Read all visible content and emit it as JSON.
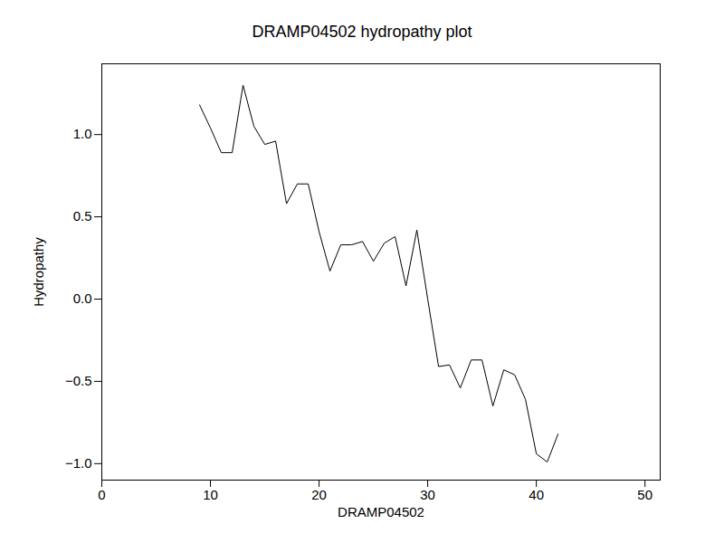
{
  "chart_data": {
    "type": "line",
    "title": "DRAMP04502 hydropathy plot",
    "x_label": "DRAMP04502",
    "y_label": "Hydropathy",
    "x": [
      9,
      10,
      11,
      12,
      13,
      14,
      15,
      16,
      17,
      18,
      19,
      20,
      21,
      22,
      23,
      24,
      25,
      26,
      27,
      28,
      29,
      30,
      31,
      32,
      33,
      34,
      35,
      36,
      37,
      38,
      39,
      40,
      41,
      42
    ],
    "values": [
      1.18,
      1.04,
      0.89,
      0.89,
      1.3,
      1.05,
      0.94,
      0.96,
      0.58,
      0.7,
      0.7,
      0.41,
      0.17,
      0.33,
      0.33,
      0.35,
      0.23,
      0.34,
      0.38,
      0.08,
      0.42,
      0.0,
      -0.41,
      -0.4,
      -0.54,
      -0.37,
      -0.37,
      -0.65,
      -0.43,
      -0.46,
      -0.61,
      -0.94,
      -0.99,
      -0.82
    ],
    "color": "#000000",
    "xlim": [
      0,
      51.4
    ],
    "xticks": [
      0,
      10,
      20,
      30,
      40,
      50
    ],
    "ylim": [
      -1.1,
      1.43
    ],
    "yticks": [
      {
        "value": -1.0,
        "label": "−1.0"
      },
      {
        "value": -0.5,
        "label": "−0.5"
      },
      {
        "value": 0,
        "label": "0.0"
      },
      {
        "value": 0.5,
        "label": "0.5"
      },
      {
        "value": 1.0,
        "label": "1.0"
      }
    ],
    "grid": false
  }
}
